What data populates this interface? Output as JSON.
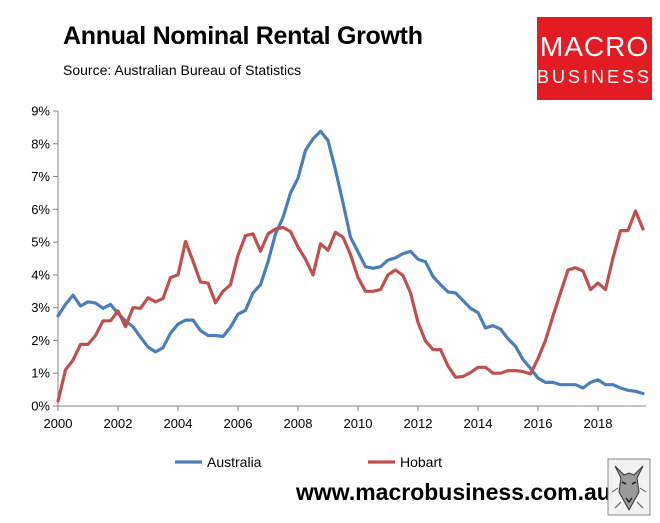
{
  "chart_data": {
    "type": "line",
    "title": "Annual Nominal Rental Growth",
    "subtitle": "Source: Australian Bureau of Statistics",
    "xlabel": "",
    "ylabel": "",
    "xlim": [
      2000,
      2019.6
    ],
    "ylim": [
      0,
      9
    ],
    "x_ticks": [
      2000,
      2002,
      2004,
      2006,
      2008,
      2010,
      2012,
      2014,
      2016,
      2018
    ],
    "x_tick_labels": [
      "2000",
      "2002",
      "2004",
      "2006",
      "2008",
      "2010",
      "2012",
      "2014",
      "2016",
      "2018"
    ],
    "y_ticks": [
      0,
      1,
      2,
      3,
      4,
      5,
      6,
      7,
      8,
      9
    ],
    "y_tick_labels": [
      "0%",
      "1%",
      "2%",
      "3%",
      "4%",
      "5%",
      "6%",
      "7%",
      "8%",
      "9%"
    ],
    "grid": false,
    "legend": "bottom",
    "series": [
      {
        "name": "Australia",
        "color": "#4a7ebb",
        "points": [
          [
            2000.0,
            2.75
          ],
          [
            2000.25,
            3.1
          ],
          [
            2000.5,
            3.38
          ],
          [
            2000.75,
            3.05
          ],
          [
            2001.0,
            3.18
          ],
          [
            2001.25,
            3.14
          ],
          [
            2001.5,
            2.98
          ],
          [
            2001.75,
            3.1
          ],
          [
            2002.0,
            2.82
          ],
          [
            2002.25,
            2.6
          ],
          [
            2002.5,
            2.42
          ],
          [
            2002.75,
            2.1
          ],
          [
            2003.0,
            1.8
          ],
          [
            2003.25,
            1.65
          ],
          [
            2003.5,
            1.78
          ],
          [
            2003.75,
            2.22
          ],
          [
            2004.0,
            2.5
          ],
          [
            2004.25,
            2.62
          ],
          [
            2004.5,
            2.62
          ],
          [
            2004.75,
            2.3
          ],
          [
            2005.0,
            2.15
          ],
          [
            2005.25,
            2.15
          ],
          [
            2005.5,
            2.12
          ],
          [
            2005.75,
            2.4
          ],
          [
            2006.0,
            2.8
          ],
          [
            2006.25,
            2.92
          ],
          [
            2006.5,
            3.45
          ],
          [
            2006.75,
            3.7
          ],
          [
            2007.0,
            4.4
          ],
          [
            2007.25,
            5.25
          ],
          [
            2007.5,
            5.75
          ],
          [
            2007.75,
            6.5
          ],
          [
            2008.0,
            6.95
          ],
          [
            2008.25,
            7.8
          ],
          [
            2008.5,
            8.15
          ],
          [
            2008.75,
            8.38
          ],
          [
            2009.0,
            8.1
          ],
          [
            2009.25,
            7.2
          ],
          [
            2009.5,
            6.2
          ],
          [
            2009.75,
            5.15
          ],
          [
            2010.0,
            4.7
          ],
          [
            2010.25,
            4.25
          ],
          [
            2010.5,
            4.2
          ],
          [
            2010.75,
            4.25
          ],
          [
            2011.0,
            4.45
          ],
          [
            2011.25,
            4.52
          ],
          [
            2011.5,
            4.65
          ],
          [
            2011.75,
            4.72
          ],
          [
            2012.0,
            4.48
          ],
          [
            2012.25,
            4.4
          ],
          [
            2012.5,
            3.95
          ],
          [
            2012.75,
            3.7
          ],
          [
            2013.0,
            3.48
          ],
          [
            2013.25,
            3.45
          ],
          [
            2013.5,
            3.22
          ],
          [
            2013.75,
            2.98
          ],
          [
            2014.0,
            2.85
          ],
          [
            2014.25,
            2.38
          ],
          [
            2014.5,
            2.45
          ],
          [
            2014.75,
            2.35
          ],
          [
            2015.0,
            2.05
          ],
          [
            2015.25,
            1.82
          ],
          [
            2015.5,
            1.42
          ],
          [
            2015.75,
            1.15
          ],
          [
            2016.0,
            0.85
          ],
          [
            2016.25,
            0.72
          ],
          [
            2016.5,
            0.72
          ],
          [
            2016.75,
            0.65
          ],
          [
            2017.0,
            0.65
          ],
          [
            2017.25,
            0.65
          ],
          [
            2017.5,
            0.55
          ],
          [
            2017.75,
            0.72
          ],
          [
            2018.0,
            0.8
          ],
          [
            2018.25,
            0.65
          ],
          [
            2018.5,
            0.65
          ],
          [
            2018.75,
            0.55
          ],
          [
            2019.0,
            0.48
          ],
          [
            2019.25,
            0.45
          ],
          [
            2019.5,
            0.38
          ]
        ]
      },
      {
        "name": "Hobart",
        "color": "#c0504d",
        "points": [
          [
            2000.0,
            0.15
          ],
          [
            2000.25,
            1.1
          ],
          [
            2000.5,
            1.4
          ],
          [
            2000.75,
            1.88
          ],
          [
            2001.0,
            1.88
          ],
          [
            2001.25,
            2.15
          ],
          [
            2001.5,
            2.6
          ],
          [
            2001.75,
            2.6
          ],
          [
            2002.0,
            2.9
          ],
          [
            2002.25,
            2.42
          ],
          [
            2002.5,
            3.0
          ],
          [
            2002.75,
            2.98
          ],
          [
            2003.0,
            3.3
          ],
          [
            2003.25,
            3.18
          ],
          [
            2003.5,
            3.28
          ],
          [
            2003.75,
            3.92
          ],
          [
            2004.0,
            4.0
          ],
          [
            2004.25,
            5.02
          ],
          [
            2004.5,
            4.42
          ],
          [
            2004.75,
            3.78
          ],
          [
            2005.0,
            3.75
          ],
          [
            2005.25,
            3.15
          ],
          [
            2005.5,
            3.5
          ],
          [
            2005.75,
            3.7
          ],
          [
            2006.0,
            4.6
          ],
          [
            2006.25,
            5.2
          ],
          [
            2006.5,
            5.25
          ],
          [
            2006.75,
            4.72
          ],
          [
            2007.0,
            5.25
          ],
          [
            2007.25,
            5.4
          ],
          [
            2007.5,
            5.45
          ],
          [
            2007.75,
            5.32
          ],
          [
            2008.0,
            4.85
          ],
          [
            2008.25,
            4.48
          ],
          [
            2008.5,
            4.0
          ],
          [
            2008.75,
            4.95
          ],
          [
            2009.0,
            4.75
          ],
          [
            2009.25,
            5.3
          ],
          [
            2009.5,
            5.15
          ],
          [
            2009.75,
            4.62
          ],
          [
            2010.0,
            3.92
          ],
          [
            2010.25,
            3.5
          ],
          [
            2010.5,
            3.5
          ],
          [
            2010.75,
            3.55
          ],
          [
            2011.0,
            4.0
          ],
          [
            2011.25,
            4.15
          ],
          [
            2011.5,
            3.98
          ],
          [
            2011.75,
            3.45
          ],
          [
            2012.0,
            2.55
          ],
          [
            2012.25,
            1.98
          ],
          [
            2012.5,
            1.72
          ],
          [
            2012.75,
            1.72
          ],
          [
            2013.0,
            1.22
          ],
          [
            2013.25,
            0.88
          ],
          [
            2013.5,
            0.9
          ],
          [
            2013.75,
            1.02
          ],
          [
            2014.0,
            1.18
          ],
          [
            2014.25,
            1.18
          ],
          [
            2014.5,
            1.0
          ],
          [
            2014.75,
            1.0
          ],
          [
            2015.0,
            1.08
          ],
          [
            2015.25,
            1.08
          ],
          [
            2015.5,
            1.05
          ],
          [
            2015.75,
            0.98
          ],
          [
            2016.0,
            1.45
          ],
          [
            2016.25,
            2.0
          ],
          [
            2016.5,
            2.75
          ],
          [
            2016.75,
            3.45
          ],
          [
            2017.0,
            4.15
          ],
          [
            2017.25,
            4.22
          ],
          [
            2017.5,
            4.12
          ],
          [
            2017.75,
            3.55
          ],
          [
            2018.0,
            3.75
          ],
          [
            2018.25,
            3.55
          ],
          [
            2018.5,
            4.52
          ],
          [
            2018.75,
            5.35
          ],
          [
            2019.0,
            5.35
          ],
          [
            2019.25,
            5.95
          ],
          [
            2019.5,
            5.4
          ]
        ]
      }
    ]
  },
  "brand": {
    "logo_line1": "MACRO",
    "logo_line2": "BUSINESS",
    "logo_color": "#e31b23",
    "url": "www.macrobusiness.com.au",
    "mascot_icon": "wolf-icon"
  }
}
